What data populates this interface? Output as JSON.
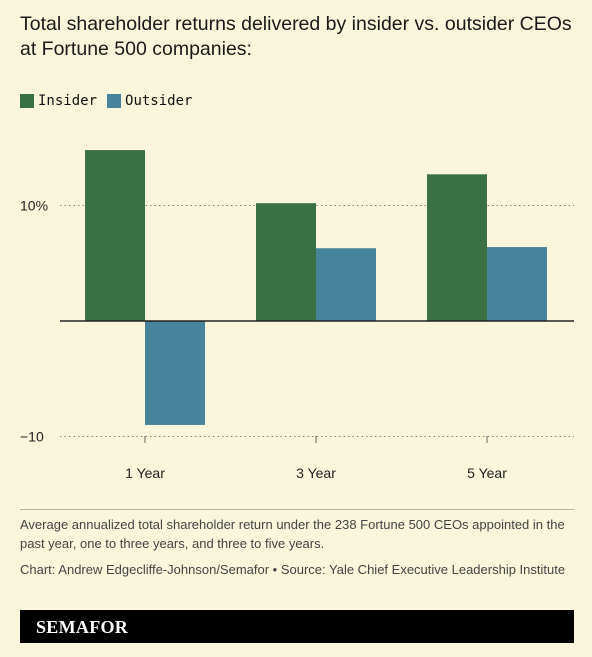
{
  "title": "Total shareholder returns delivered by insider vs. outsider CEOs at Fortune 500 companies:",
  "colors": {
    "insider": "#3a7143",
    "outsider": "#47839b",
    "background": "#faf6dc"
  },
  "chart_data": {
    "type": "bar",
    "categories": [
      "1 Year",
      "3 Year",
      "5 Year"
    ],
    "series": [
      {
        "name": "Insider",
        "values": [
          14.8,
          10.2,
          12.7
        ]
      },
      {
        "name": "Outsider",
        "values": [
          -9.0,
          6.3,
          6.4
        ]
      }
    ],
    "ylim": [
      -10,
      15.5
    ],
    "yticks": [
      {
        "value": 10,
        "label": "10%"
      },
      {
        "value": -10,
        "label": "−10"
      }
    ],
    "zero_line": true,
    "grid": "horizontal dotted",
    "legend_position": "top-left"
  },
  "note": "Average annualized total shareholder return under the 238 Fortune 500 CEOs appointed in the past year, one to three years, and three to five years.",
  "credit": "Chart: Andrew Edgecliffe-Johnson/Semafor • Source: Yale Chief Executive Leadership Institute",
  "brand": "SEMAFOR"
}
